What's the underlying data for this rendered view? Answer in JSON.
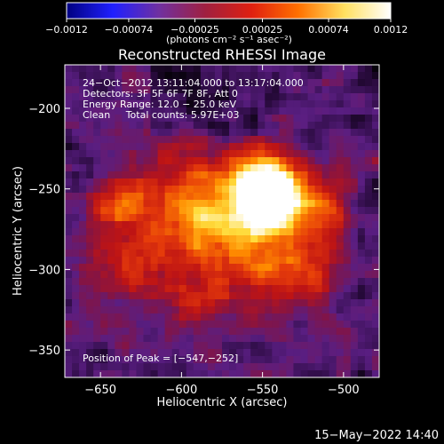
{
  "chart_data": {
    "type": "heatmap",
    "title": "Reconstructed RHESSI Image",
    "xlabel": "Heliocentric X (arcsec)",
    "ylabel": "Heliocentric Y (arcsec)",
    "xlim": [
      -672,
      -478
    ],
    "ylim": [
      -367,
      -173
    ],
    "xticks": [
      -650,
      -600,
      -550,
      -500
    ],
    "yticks": [
      -350,
      -300,
      -250,
      -200
    ],
    "xtick_labels": [
      "−650",
      "−600",
      "−550",
      "−500"
    ],
    "ytick_labels": [
      "−350",
      "−300",
      "−250",
      "−200"
    ],
    "colorbar": {
      "range": [
        -0.0012,
        0.0012
      ],
      "ticks": [
        -0.0012,
        -0.00074,
        -0.00025,
        0.00025,
        0.00074,
        0.0012
      ],
      "tick_labels": [
        "−0.0012",
        "−0.00074",
        "−0.00025",
        "0.00025",
        "0.00074",
        "0.0012"
      ],
      "unit": "(photons cm⁻² s⁻¹ asec⁻²)",
      "colors": [
        "#000080",
        "#2020ff",
        "#7030a0",
        "#a02040",
        "#e02010",
        "#ff7000",
        "#ffe060",
        "#ffffff"
      ]
    },
    "annotations": [
      "24−Oct−2012 13:11:04.000 to 13:17:04.000",
      "Detectors: 3F 5F 6F 7F 8F, Att 0",
      "Energy Range: 12.0 − 25.0 keV",
      "Clean     Total counts: 5.97E+03"
    ],
    "peak_label": "Position of Peak = [−547,−252]",
    "peak": [
      -547,
      -252
    ],
    "peak_value": 0.0012
  },
  "footer": {
    "datetime": "15−May−2022 14:40"
  }
}
